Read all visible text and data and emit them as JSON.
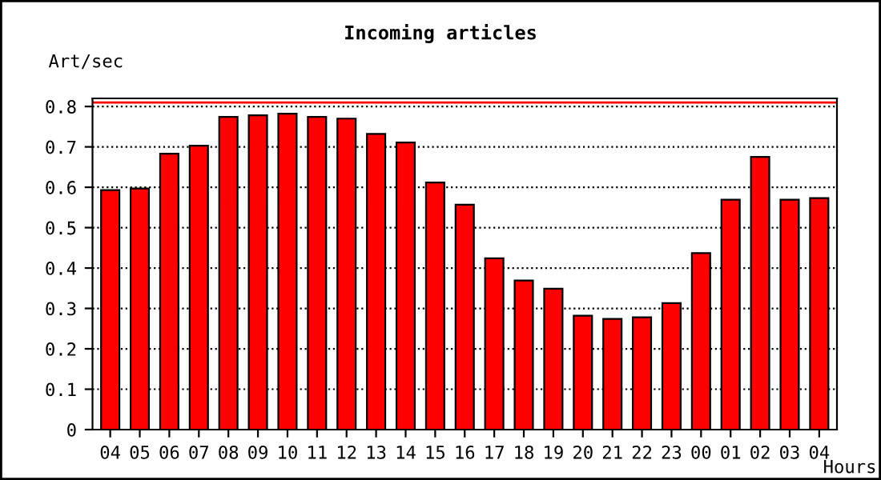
{
  "chart_data": {
    "type": "bar",
    "title": "Incoming articles",
    "ylabel": "Art/sec",
    "xlabel": "Hours",
    "categories": [
      "04",
      "05",
      "06",
      "07",
      "08",
      "09",
      "10",
      "11",
      "12",
      "13",
      "14",
      "15",
      "16",
      "17",
      "18",
      "19",
      "20",
      "21",
      "22",
      "23",
      "00",
      "01",
      "02",
      "03",
      "04"
    ],
    "values": [
      0.593,
      0.597,
      0.683,
      0.703,
      0.774,
      0.778,
      0.782,
      0.774,
      0.77,
      0.732,
      0.711,
      0.612,
      0.557,
      0.424,
      0.369,
      0.349,
      0.282,
      0.274,
      0.278,
      0.313,
      0.437,
      0.569,
      0.675,
      0.569,
      0.573
    ],
    "color": "#ff0000",
    "ylim": [
      0,
      0.82
    ],
    "yticks": [
      0,
      0.1,
      0.2,
      0.3,
      0.4,
      0.5,
      0.6,
      0.7,
      0.8
    ],
    "grid": "y",
    "line_style": "dotted",
    "ref_lines": [
      {
        "axis": "y",
        "value": 0.81,
        "label": null,
        "color": "#ff0000",
        "line_style": "solid"
      }
    ]
  }
}
